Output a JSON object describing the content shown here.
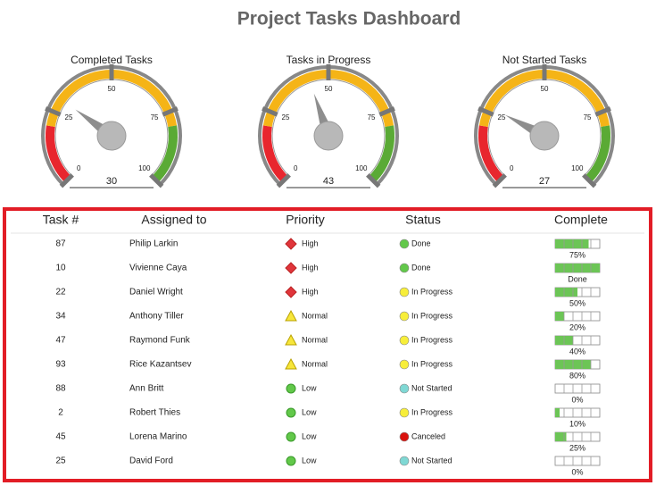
{
  "title": "Project Tasks Dashboard",
  "gauge_scale": {
    "range": [
      0,
      100
    ],
    "ticks": [
      0,
      25,
      50,
      75,
      100
    ],
    "bands": [
      {
        "from": 0,
        "to": 20,
        "color": "#e8262e"
      },
      {
        "from": 20,
        "to": 80,
        "color": "#f5b417"
      },
      {
        "from": 80,
        "to": 100,
        "color": "#5aaa35"
      }
    ]
  },
  "gauges": [
    {
      "label": "Completed Tasks",
      "value": 30
    },
    {
      "label": "Tasks in Progress",
      "value": 43
    },
    {
      "label": "Not Started Tasks",
      "value": 27
    }
  ],
  "table": {
    "headers": [
      "Task #",
      "Assigned to",
      "Priority",
      "Status",
      "Complete"
    ],
    "rows": [
      {
        "task": 87,
        "assigned": "Philip Larkin",
        "priority": "High",
        "priority_shape": "diamond",
        "priority_color": "#e0353b",
        "status": "Done",
        "status_color": "#62c84a",
        "complete": {
          "value": 75,
          "label": "75%"
        }
      },
      {
        "task": 10,
        "assigned": "Vivienne Caya",
        "priority": "High",
        "priority_shape": "diamond",
        "priority_color": "#e0353b",
        "status": "Done",
        "status_color": "#62c84a",
        "complete": {
          "value": 100,
          "label": "Done"
        }
      },
      {
        "task": 22,
        "assigned": "Daniel Wright",
        "priority": "High",
        "priority_shape": "diamond",
        "priority_color": "#e0353b",
        "status": "In Progress",
        "status_color": "#f7ee3a",
        "complete": {
          "value": 50,
          "label": "50%"
        }
      },
      {
        "task": 34,
        "assigned": "Anthony Tiller",
        "priority": "Normal",
        "priority_shape": "triangle",
        "priority_color": "#f7e63a",
        "status": "In Progress",
        "status_color": "#f7ee3a",
        "complete": {
          "value": 20,
          "label": "20%"
        }
      },
      {
        "task": 47,
        "assigned": "Raymond Funk",
        "priority": "Normal",
        "priority_shape": "triangle",
        "priority_color": "#f7e63a",
        "status": "In Progress",
        "status_color": "#f7ee3a",
        "complete": {
          "value": 40,
          "label": "40%"
        }
      },
      {
        "task": 93,
        "assigned": "Rice Kazantsev",
        "priority": "Normal",
        "priority_shape": "triangle",
        "priority_color": "#f7e63a",
        "status": "In Progress",
        "status_color": "#f7ee3a",
        "complete": {
          "value": 80,
          "label": "80%"
        }
      },
      {
        "task": 88,
        "assigned": "Ann Britt",
        "priority": "Low",
        "priority_shape": "circle",
        "priority_color": "#62c84a",
        "status": "Not Started",
        "status_color": "#7fd8d4",
        "complete": {
          "value": 0,
          "label": "0%"
        }
      },
      {
        "task": 2,
        "assigned": "Robert Thies",
        "priority": "Low",
        "priority_shape": "circle",
        "priority_color": "#62c84a",
        "status": "In Progress",
        "status_color": "#f7ee3a",
        "complete": {
          "value": 10,
          "label": "10%"
        }
      },
      {
        "task": 45,
        "assigned": "Lorena Marino",
        "priority": "Low",
        "priority_shape": "circle",
        "priority_color": "#62c84a",
        "status": "Canceled",
        "status_color": "#d9120e",
        "complete": {
          "value": 25,
          "label": "25%"
        }
      },
      {
        "task": 25,
        "assigned": "David Ford",
        "priority": "Low",
        "priority_shape": "circle",
        "priority_color": "#62c84a",
        "status": "Not Started",
        "status_color": "#7fd8d4",
        "complete": {
          "value": 0,
          "label": "0%"
        }
      }
    ]
  }
}
